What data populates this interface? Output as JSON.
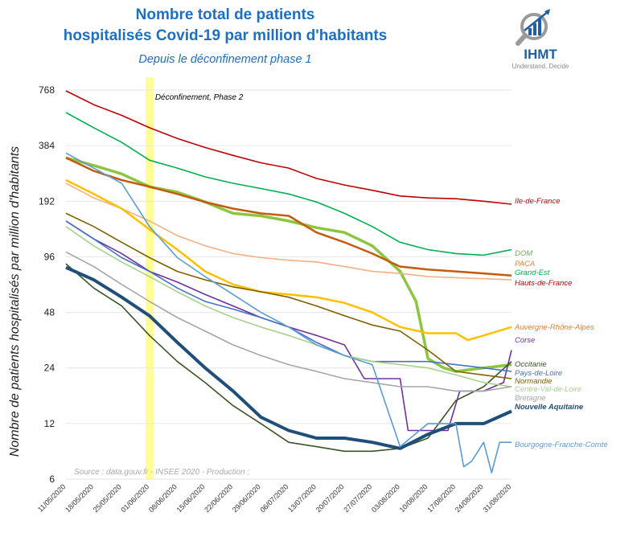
{
  "header": {
    "title_line1": "Nombre total de patients",
    "title_line2": "hospitalisés Covid-19 par million d'habitants",
    "subtitle": "Depuis le déconfinement phase 1"
  },
  "logo": {
    "name": "IHMT",
    "tagline": "Understand, Decide"
  },
  "chart_data": {
    "type": "line",
    "title": "Nombre total de patients hospitalisés Covid-19 par million d'habitants",
    "subtitle": "Depuis le déconfinement phase 1",
    "ylabel": "Nombre de patients hospitalisés par million d'habitants",
    "xlabel": "",
    "yscale": "log2",
    "ylim": [
      6,
      900
    ],
    "yticks": [
      6,
      12,
      24,
      48,
      96,
      192,
      384,
      768
    ],
    "ytick_labels": [
      "6",
      "12",
      "24",
      "48",
      "96",
      "192",
      "384",
      "768"
    ],
    "x_days": [
      0,
      7,
      14,
      21,
      28,
      35,
      42,
      49,
      56,
      63,
      70,
      77,
      84,
      91,
      98,
      105,
      112
    ],
    "xtick_labels": [
      "11/05/2020",
      "18/05/2020",
      "25/05/2020",
      "01/06/2020",
      "08/06/2020",
      "15/06/2020",
      "22/06/2020",
      "29/06/2020",
      "06/07/2020",
      "13/07/2020",
      "20/07/2020",
      "27/07/2020",
      "03/08/2020",
      "10/08/2020",
      "17/08/2020",
      "24/08/2020",
      "31/08/2020"
    ],
    "xlim": [
      0,
      112
    ],
    "annotation": {
      "label": "Déconfinement, Phase 2",
      "x_start": 20,
      "x_end": 22
    },
    "source": "Source : data.gouv.fr - INSEE 2020 - Production :",
    "series": [
      {
        "name": "Ile-de-France",
        "color": "#c00000",
        "x": [
          0,
          7,
          14,
          21,
          28,
          35,
          42,
          49,
          56,
          63,
          70,
          77,
          84,
          91,
          98,
          105,
          112
        ],
        "values": [
          760,
          640,
          560,
          480,
          420,
          375,
          340,
          310,
          290,
          255,
          235,
          220,
          205,
          200,
          198,
          192,
          185
        ]
      },
      {
        "name": "DOM",
        "color": "#8cc63f",
        "x": [
          0,
          7,
          14,
          21,
          28,
          35,
          42,
          49,
          56,
          63,
          70,
          77,
          84,
          88,
          91,
          95,
          98,
          105,
          112
        ],
        "values": [
          330,
          300,
          270,
          230,
          215,
          190,
          165,
          160,
          150,
          138,
          130,
          110,
          80,
          55,
          27,
          24,
          23,
          24,
          25
        ]
      },
      {
        "name": "PACA",
        "color": "#f4b183",
        "x": [
          0,
          7,
          14,
          21,
          28,
          35,
          42,
          49,
          56,
          63,
          70,
          77,
          84,
          91,
          98,
          105,
          112
        ],
        "values": [
          240,
          200,
          175,
          150,
          125,
          110,
          100,
          95,
          92,
          90,
          85,
          80,
          78,
          75,
          74,
          73,
          72
        ]
      },
      {
        "name": "Grand-Est",
        "color": "#00b050",
        "x": [
          0,
          7,
          14,
          21,
          28,
          35,
          42,
          49,
          56,
          63,
          70,
          77,
          84,
          91,
          98,
          105,
          112
        ],
        "values": [
          580,
          480,
          400,
          320,
          290,
          260,
          240,
          225,
          210,
          190,
          165,
          140,
          115,
          105,
          100,
          98,
          105
        ]
      },
      {
        "name": "Hauts-de-France",
        "color": "#c55a11",
        "x": [
          0,
          7,
          14,
          21,
          28,
          35,
          42,
          49,
          56,
          63,
          70,
          77,
          84,
          91,
          98,
          105,
          112
        ],
        "values": [
          330,
          280,
          250,
          230,
          210,
          190,
          175,
          165,
          160,
          130,
          115,
          100,
          85,
          82,
          80,
          78,
          76
        ]
      },
      {
        "name": "Auvergne-Rhône-Alpes",
        "color": "#ffc000",
        "x": [
          0,
          7,
          14,
          21,
          28,
          35,
          42,
          49,
          56,
          63,
          70,
          77,
          84,
          91,
          98,
          101,
          105,
          112
        ],
        "values": [
          250,
          210,
          175,
          135,
          105,
          80,
          68,
          62,
          60,
          58,
          54,
          48,
          40,
          37,
          37,
          34,
          36,
          40
        ]
      },
      {
        "name": "Corse",
        "color": "#7030a0",
        "x": [
          0,
          7,
          14,
          21,
          28,
          35,
          42,
          49,
          56,
          63,
          70,
          75,
          84,
          86,
          96,
          99,
          105,
          110,
          112
        ],
        "values": [
          150,
          120,
          100,
          80,
          70,
          60,
          52,
          45,
          40,
          36,
          32,
          21,
          21,
          11,
          11,
          18,
          18,
          20,
          30
        ]
      },
      {
        "name": "Occitanie",
        "color": "#375623",
        "x": [
          0,
          7,
          14,
          21,
          28,
          35,
          42,
          49,
          56,
          63,
          70,
          77,
          84,
          91,
          98,
          105,
          112
        ],
        "values": [
          88,
          65,
          52,
          36,
          26,
          20,
          15,
          12,
          9.5,
          9,
          8.5,
          8.5,
          8.8,
          10,
          16,
          19,
          26
        ]
      },
      {
        "name": "Pays-de-Loire",
        "color": "#4472c4",
        "x": [
          0,
          7,
          14,
          21,
          28,
          35,
          42,
          49,
          56,
          63,
          70,
          77,
          84,
          91,
          98,
          105,
          112
        ],
        "values": [
          150,
          120,
          95,
          80,
          65,
          55,
          50,
          45,
          40,
          33,
          28,
          26,
          26,
          26,
          25,
          24,
          23
        ]
      },
      {
        "name": "Normandie",
        "color": "#806000",
        "x": [
          0,
          7,
          14,
          21,
          28,
          35,
          42,
          49,
          56,
          63,
          70,
          77,
          84,
          91,
          98,
          105,
          112
        ],
        "values": [
          165,
          140,
          115,
          95,
          80,
          72,
          66,
          62,
          58,
          52,
          46,
          41,
          38,
          30,
          23,
          22,
          21
        ]
      },
      {
        "name": "Centre-Val-de-Loire",
        "color": "#a9d18e",
        "x": [
          0,
          7,
          14,
          21,
          28,
          35,
          42,
          49,
          56,
          63,
          70,
          77,
          84,
          91,
          98,
          105,
          112
        ],
        "values": [
          140,
          110,
          90,
          75,
          62,
          52,
          45,
          40,
          36,
          32,
          28,
          26,
          25,
          24,
          22,
          20,
          19
        ]
      },
      {
        "name": "Bretagne",
        "color": "#a6a6a6",
        "x": [
          0,
          7,
          14,
          21,
          28,
          35,
          42,
          49,
          56,
          63,
          70,
          77,
          84,
          91,
          98,
          105,
          112
        ],
        "values": [
          102,
          85,
          68,
          55,
          45,
          38,
          32,
          28,
          25,
          23,
          21,
          20,
          19,
          19,
          18,
          18,
          19
        ]
      },
      {
        "name": "Nouvelle Aquitaine",
        "color": "#1f4e79",
        "x": [
          0,
          7,
          14,
          21,
          28,
          35,
          42,
          49,
          56,
          63,
          70,
          77,
          84,
          91,
          98,
          105,
          112
        ],
        "values": [
          84,
          72,
          58,
          46,
          33,
          24,
          18,
          13,
          11,
          10,
          10,
          9.5,
          8.8,
          10.5,
          12,
          12,
          14
        ]
      },
      {
        "name": "Bourgogne-Franche-Comté",
        "color": "#5b9bd5",
        "x": [
          0,
          7,
          14,
          21,
          28,
          35,
          42,
          49,
          56,
          63,
          70,
          77,
          84,
          91,
          98,
          100,
          102,
          105,
          107,
          109,
          112
        ],
        "values": [
          350,
          290,
          240,
          140,
          95,
          75,
          60,
          48,
          40,
          32,
          28,
          25,
          9,
          12,
          12,
          7,
          7.5,
          9.5,
          6.5,
          9.5,
          9.5
        ]
      }
    ]
  }
}
